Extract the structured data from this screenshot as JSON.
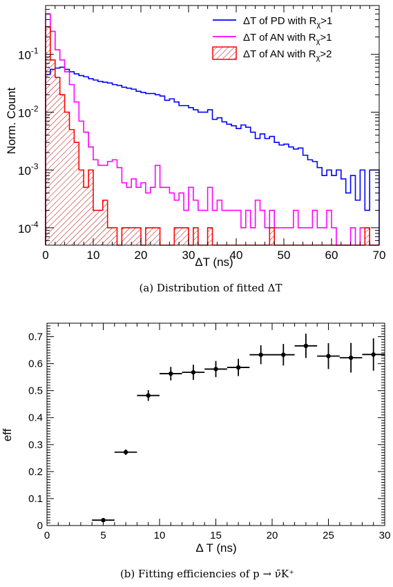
{
  "chart_data": [
    {
      "type": "line",
      "title": "",
      "caption": "(a)  Distribution of fitted ΔT",
      "xlabel": "ΔT (ns)",
      "ylabel": "Norm. Count",
      "xlim": [
        0,
        70
      ],
      "ylim": [
        5e-05,
        0.7
      ],
      "yscale": "log",
      "xticks": [
        "0",
        "10",
        "20",
        "30",
        "40",
        "50",
        "60",
        "70"
      ],
      "yticks": [
        {
          "base": "10",
          "exp": "-1",
          "value": 0.1
        },
        {
          "base": "10",
          "exp": "-2",
          "value": 0.01
        },
        {
          "base": "10",
          "exp": "-3",
          "value": 0.001
        },
        {
          "base": "10",
          "exp": "-4",
          "value": 0.0001
        }
      ],
      "legend_position": "top-right",
      "bin_width": 1,
      "series": [
        {
          "name_main": "ΔT of PD with R",
          "name_sub": "χ",
          "name_tail": ">1",
          "color": "#0000ff",
          "style": "line",
          "values": [
            0.045,
            0.055,
            0.058,
            0.06,
            0.055,
            0.05,
            0.046,
            0.043,
            0.041,
            0.038,
            0.036,
            0.034,
            0.033,
            0.032,
            0.03,
            0.029,
            0.027,
            0.026,
            0.025,
            0.023,
            0.022,
            0.021,
            0.021,
            0.02,
            0.019,
            0.016,
            0.017,
            0.015,
            0.013,
            0.013,
            0.012,
            0.011,
            0.01,
            0.01,
            0.011,
            0.0075,
            0.008,
            0.0068,
            0.0062,
            0.0058,
            0.0052,
            0.006,
            0.0055,
            0.0045,
            0.0035,
            0.0042,
            0.0035,
            0.0038,
            0.003,
            0.0027,
            0.0028,
            0.0025,
            0.0023,
            0.0024,
            0.0018,
            0.0015,
            0.0014,
            0.0011,
            0.0008,
            0.001,
            0.0008,
            0.001,
            0.0007,
            0.0004,
            0.0008,
            0.0003,
            0.001,
            0.0002,
            0.001,
            0.001
          ]
        },
        {
          "name_main": "ΔT of AN with R",
          "name_sub": "χ",
          "name_tail": ">1",
          "color": "#ff00ff",
          "style": "line",
          "values": [
            0.5,
            0.25,
            0.12,
            0.08,
            0.05,
            0.03,
            0.015,
            0.007,
            0.0045,
            0.0025,
            0.0015,
            0.0012,
            0.0012,
            0.0014,
            0.0015,
            0.0011,
            0.0006,
            0.0005,
            0.0007,
            0.0005,
            0.0006,
            0.0004,
            0.0005,
            0.0012,
            0.0005,
            0.0005,
            0.0004,
            0.0003,
            0.0004,
            0.0002,
            0.0005,
            0.0003,
            0.0002,
            0.0002,
            0.0005,
            0.0002,
            0.0003,
            0.0002,
            0.0002,
            0.0002,
            0.0002,
            0.0001,
            0.0002,
            0.0001,
            0.0003,
            0.0002,
            0.0001,
            0.0002,
            0.0001,
            0.0001,
            0.0001,
            0.0001,
            0.0002,
            0.0001,
            0.0001,
            0.0001,
            0.0002,
            0.0001,
            0.0001,
            0.0002,
            0.0001,
            5e-05,
            5e-05,
            5e-05,
            0.0001,
            5e-05,
            0.0001,
            0.0001,
            5e-05,
            5e-05
          ]
        },
        {
          "name_main": "ΔT of AN with R",
          "name_sub": "χ",
          "name_tail": ">2",
          "color": "#ff0000",
          "style": "hatched",
          "values": [
            0.3,
            0.08,
            0.04,
            0.02,
            0.01,
            0.005,
            0.003,
            0.001,
            0.0005,
            0.001,
            0.0002,
            0.0002,
            0.0003,
            0.0001,
            0.0001,
            5e-05,
            0.0001,
            0.0001,
            0.0001,
            0.0001,
            5e-05,
            0.0001,
            0.0001,
            0.0001,
            5e-05,
            5e-05,
            5e-05,
            0.0001,
            0.0001,
            0.0001,
            5e-05,
            0.0001,
            5e-05,
            5e-05,
            0.0001,
            5e-05,
            5e-05,
            5e-05,
            5e-05,
            5e-05,
            5e-05,
            5e-05,
            5e-05,
            5e-05,
            5e-05,
            5e-05,
            5e-05,
            0.0001,
            5e-05,
            5e-05,
            5e-05,
            5e-05,
            5e-05,
            5e-05,
            5e-05,
            5e-05,
            5e-05,
            5e-05,
            5e-05,
            5e-05,
            5e-05,
            5e-05,
            5e-05,
            5e-05,
            5e-05,
            5e-05,
            5e-05,
            0.0001,
            5e-05,
            5e-05
          ]
        }
      ]
    },
    {
      "type": "scatter",
      "title": "",
      "caption": "(b)  Fitting efficiencies of p → ν̄K⁺",
      "xlabel": "Δ T (ns)",
      "ylabel": "eff",
      "xlim": [
        0,
        30
      ],
      "ylim": [
        0,
        0.75
      ],
      "xticks": [
        "0",
        "5",
        "10",
        "15",
        "20",
        "25",
        "30"
      ],
      "yticks": [
        "0",
        "0.1",
        "0.2",
        "0.3",
        "0.4",
        "0.5",
        "0.6",
        "0.7"
      ],
      "series": [
        {
          "name": "",
          "color": "#000000",
          "x": [
            5,
            7,
            9,
            11,
            13,
            15,
            17,
            19,
            21,
            23,
            25,
            27,
            29
          ],
          "x_err": [
            1,
            1,
            1,
            1,
            1,
            1,
            1,
            1,
            1,
            1,
            1,
            1,
            1
          ],
          "y": [
            0.02,
            0.272,
            0.482,
            0.563,
            0.568,
            0.58,
            0.586,
            0.633,
            0.633,
            0.666,
            0.628,
            0.622,
            0.634
          ],
          "y_err": [
            0.005,
            0.01,
            0.02,
            0.025,
            0.028,
            0.03,
            0.032,
            0.035,
            0.04,
            0.045,
            0.048,
            0.055,
            0.06
          ]
        }
      ]
    }
  ]
}
